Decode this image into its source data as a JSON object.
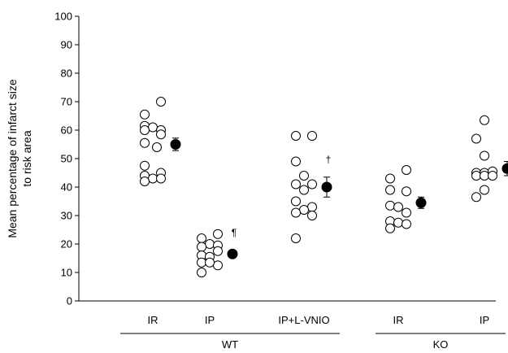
{
  "chart_data": {
    "type": "scatter",
    "ylabel": [
      "Mean percentage of infarct size",
      "to risk area"
    ],
    "ylim": [
      0,
      100
    ],
    "yticks": [
      0,
      10,
      20,
      30,
      40,
      50,
      60,
      70,
      80,
      90,
      100
    ],
    "groups": [
      {
        "label": "WT",
        "categories": [
          "IR",
          "IP",
          "IP+L-VNIO"
        ]
      },
      {
        "label": "KO",
        "categories": [
          "IR",
          "IP"
        ]
      }
    ],
    "series": [
      {
        "group": "WT",
        "category": "IR",
        "points": [
          [
            -1,
            65.5
          ],
          [
            1,
            70
          ],
          [
            -1,
            61.5
          ],
          [
            0,
            61
          ],
          [
            1,
            60
          ],
          [
            -1,
            60
          ],
          [
            1,
            58.5
          ],
          [
            -1,
            55.5
          ],
          [
            0.5,
            54
          ],
          [
            -1,
            47.5
          ],
          [
            1,
            45
          ],
          [
            -1,
            44
          ],
          [
            0,
            43
          ],
          [
            -1,
            42
          ],
          [
            1,
            43
          ]
        ],
        "mean": 55,
        "error": 2.2
      },
      {
        "group": "WT",
        "category": "IP",
        "points": [
          [
            -1,
            22
          ],
          [
            1,
            23.5
          ],
          [
            0,
            20
          ],
          [
            1,
            19.5
          ],
          [
            -1,
            19
          ],
          [
            -1,
            16
          ],
          [
            1,
            17.5
          ],
          [
            0,
            15.5
          ],
          [
            -1,
            13.5
          ],
          [
            1,
            12.5
          ],
          [
            0,
            13.5
          ],
          [
            -1,
            10
          ]
        ],
        "mean": 16.5,
        "error": 1.2,
        "annotation": "¶"
      },
      {
        "group": "WT",
        "category": "IP+L-VNIO",
        "points": [
          [
            -1,
            58
          ],
          [
            1,
            58
          ],
          [
            -1,
            49
          ],
          [
            0,
            44
          ],
          [
            -1,
            41
          ],
          [
            1,
            41
          ],
          [
            0,
            39
          ],
          [
            -1,
            35
          ],
          [
            1,
            33
          ],
          [
            0,
            32
          ],
          [
            1,
            30
          ],
          [
            -1,
            31
          ],
          [
            -1,
            22
          ]
        ],
        "mean": 40,
        "error": 3.5,
        "annotation": "†"
      },
      {
        "group": "KO",
        "category": "IR",
        "points": [
          [
            -1,
            43
          ],
          [
            1,
            46
          ],
          [
            -1,
            39
          ],
          [
            1,
            38.5
          ],
          [
            -1,
            33.5
          ],
          [
            0,
            33
          ],
          [
            1,
            31
          ],
          [
            -1,
            28
          ],
          [
            0,
            27.5
          ],
          [
            1,
            27
          ],
          [
            -1,
            25.5
          ]
        ],
        "mean": 34.5,
        "error": 2
      },
      {
        "group": "KO",
        "category": "IP",
        "points": [
          [
            0,
            63.5
          ],
          [
            -1,
            57
          ],
          [
            0,
            51
          ],
          [
            -1,
            45
          ],
          [
            0,
            45
          ],
          [
            1,
            45.5
          ],
          [
            -1,
            44
          ],
          [
            0,
            44
          ],
          [
            1,
            44
          ],
          [
            -1,
            36.5
          ],
          [
            0,
            39
          ]
        ],
        "mean": 46.5,
        "error": 2.5
      }
    ]
  }
}
